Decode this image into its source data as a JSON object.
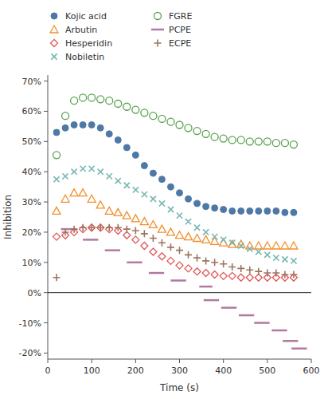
{
  "chart_data": {
    "type": "scatter",
    "x_label": "Time (s)",
    "y_label": "Inhibition",
    "xlim": [
      0,
      600
    ],
    "ylim": [
      -0.22,
      0.72
    ],
    "xticks": [
      0,
      100,
      200,
      300,
      400,
      500,
      600
    ],
    "yticks": [
      {
        "value": -0.2,
        "label": "-20%"
      },
      {
        "value": -0.1,
        "label": "-10%"
      },
      {
        "value": 0.0,
        "label": "0%"
      },
      {
        "value": 0.1,
        "label": "10%"
      },
      {
        "value": 0.2,
        "label": "20%"
      },
      {
        "value": 0.3,
        "label": "30%"
      },
      {
        "value": 0.4,
        "label": "40%"
      },
      {
        "value": 0.5,
        "label": "50%"
      },
      {
        "value": 0.6,
        "label": "60%"
      },
      {
        "value": 0.7,
        "label": "70%"
      }
    ],
    "grid": false,
    "legend": "top",
    "x": [
      20,
      40,
      60,
      80,
      100,
      120,
      140,
      160,
      180,
      200,
      220,
      240,
      260,
      280,
      300,
      320,
      340,
      360,
      380,
      400,
      420,
      440,
      460,
      480,
      500,
      520,
      540,
      560
    ],
    "series": [
      {
        "name": "Kojic acid",
        "marker": "filled-circle",
        "values": [
          0.53,
          0.545,
          0.555,
          0.555,
          0.555,
          0.545,
          0.525,
          0.505,
          0.48,
          0.455,
          0.42,
          0.395,
          0.375,
          0.35,
          0.33,
          0.31,
          0.295,
          0.285,
          0.28,
          0.275,
          0.27,
          0.27,
          0.27,
          0.27,
          0.27,
          0.27,
          0.265,
          0.265
        ]
      },
      {
        "name": "Arbutin",
        "marker": "triangle",
        "values": [
          0.27,
          0.31,
          0.33,
          0.33,
          0.31,
          0.29,
          0.27,
          0.265,
          0.255,
          0.245,
          0.235,
          0.225,
          0.21,
          0.2,
          0.19,
          0.185,
          0.18,
          0.175,
          0.17,
          0.165,
          0.16,
          0.16,
          0.155,
          0.155,
          0.155,
          0.155,
          0.155,
          0.155
        ]
      },
      {
        "name": "Hesperidin",
        "marker": "diamond",
        "values": [
          0.185,
          0.19,
          0.2,
          0.21,
          0.215,
          0.215,
          0.21,
          0.205,
          0.19,
          0.175,
          0.155,
          0.135,
          0.12,
          0.105,
          0.09,
          0.08,
          0.07,
          0.065,
          0.06,
          0.055,
          0.055,
          0.05,
          0.05,
          0.05,
          0.05,
          0.05,
          0.05,
          0.05
        ]
      },
      {
        "name": "Nobiletin",
        "marker": "x",
        "values": [
          0.375,
          0.385,
          0.4,
          0.41,
          0.41,
          0.4,
          0.385,
          0.37,
          0.355,
          0.34,
          0.325,
          0.31,
          0.295,
          0.275,
          0.255,
          0.235,
          0.215,
          0.2,
          0.185,
          0.175,
          0.165,
          0.155,
          0.145,
          0.135,
          0.125,
          0.115,
          0.11,
          0.105
        ]
      },
      {
        "name": "FGRE",
        "marker": "circle",
        "values": [
          0.455,
          0.585,
          0.635,
          0.645,
          0.645,
          0.64,
          0.635,
          0.625,
          0.615,
          0.605,
          0.595,
          0.585,
          0.575,
          0.565,
          0.555,
          0.545,
          0.535,
          0.525,
          0.515,
          0.51,
          0.505,
          0.505,
          0.5,
          0.5,
          0.5,
          0.495,
          0.495,
          0.49
        ]
      },
      {
        "name": "PCPE",
        "type": "segments",
        "line_style": "solid",
        "x": [
          30,
          65,
          80,
          115,
          130,
          165,
          180,
          215,
          230,
          265,
          280,
          315,
          345,
          375,
          355,
          390,
          395,
          430,
          435,
          470,
          470,
          505,
          510,
          545,
          535,
          570,
          555,
          590
        ],
        "values": [
          0.21,
          0.21,
          0.175,
          0.175,
          0.14,
          0.14,
          0.1,
          0.1,
          0.065,
          0.065,
          0.04,
          0.04,
          0.02,
          0.02,
          -0.025,
          -0.025,
          -0.05,
          -0.05,
          -0.075,
          -0.075,
          -0.1,
          -0.1,
          -0.125,
          -0.125,
          -0.16,
          -0.16,
          -0.185,
          -0.185
        ]
      },
      {
        "name": "ECPE",
        "marker": "plus",
        "values": [
          0.05,
          0.2,
          0.21,
          0.215,
          0.215,
          0.215,
          0.215,
          0.215,
          0.21,
          0.205,
          0.195,
          0.18,
          0.165,
          0.15,
          0.14,
          0.125,
          0.115,
          0.105,
          0.1,
          0.095,
          0.085,
          0.08,
          0.075,
          0.07,
          0.065,
          0.065,
          0.06,
          0.06
        ]
      }
    ]
  }
}
